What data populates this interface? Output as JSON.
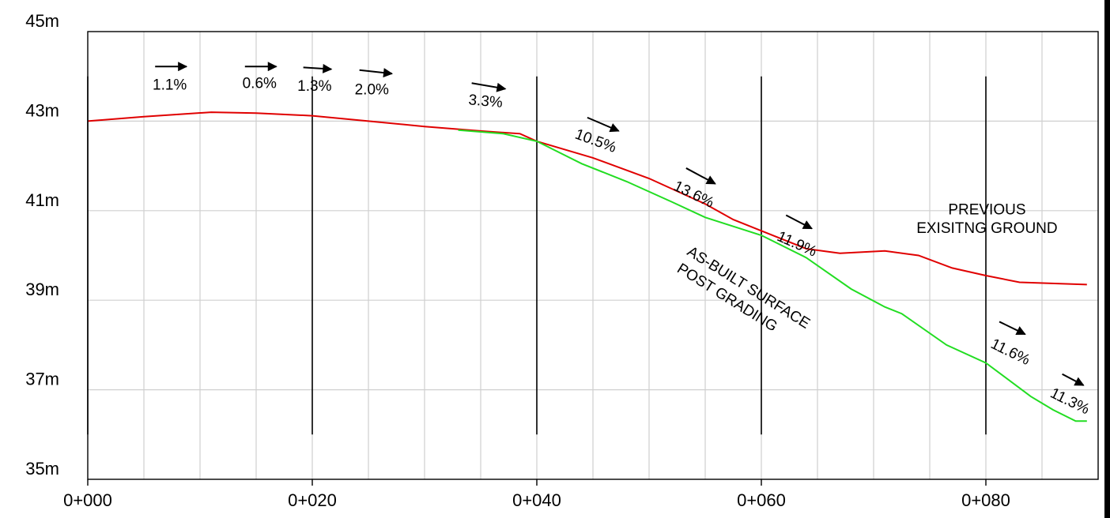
{
  "chart_data": {
    "type": "line",
    "xlabel": "",
    "ylabel": "",
    "xlim": [
      0,
      90
    ],
    "ylim": [
      35,
      45
    ],
    "x_ticks": [
      {
        "value": 0,
        "label": "0+000"
      },
      {
        "value": 20,
        "label": "0+020"
      },
      {
        "value": 40,
        "label": "0+040"
      },
      {
        "value": 60,
        "label": "0+060"
      },
      {
        "value": 80,
        "label": "0+080"
      }
    ],
    "y_ticks": [
      {
        "value": 45,
        "label": "45m"
      },
      {
        "value": 43,
        "label": "43m"
      },
      {
        "value": 41,
        "label": "41m"
      },
      {
        "value": 39,
        "label": "39m"
      },
      {
        "value": 37,
        "label": "37m"
      },
      {
        "value": 35,
        "label": "35m"
      }
    ],
    "grid": true,
    "minor_grid_x": 5,
    "minor_grid_y": 2,
    "major_x_lines": [
      0,
      20,
      40,
      60,
      80
    ],
    "series": [
      {
        "color": "#e00000",
        "points": [
          [
            0,
            43.0
          ],
          [
            5,
            43.1
          ],
          [
            11,
            43.2
          ],
          [
            15,
            43.18
          ],
          [
            20,
            43.12
          ],
          [
            25,
            43.0
          ],
          [
            30,
            42.88
          ],
          [
            35,
            42.78
          ],
          [
            38.5,
            42.72
          ],
          [
            40,
            42.55
          ],
          [
            45,
            42.18
          ],
          [
            50,
            41.72
          ],
          [
            55,
            41.15
          ],
          [
            57.5,
            40.8
          ],
          [
            60,
            40.55
          ],
          [
            64,
            40.15
          ],
          [
            67,
            40.05
          ],
          [
            71,
            40.1
          ],
          [
            74,
            40.0
          ],
          [
            77,
            39.72
          ],
          [
            80,
            39.55
          ],
          [
            83,
            39.4
          ],
          [
            89,
            39.35
          ]
        ]
      },
      {
        "color": "#22dd22",
        "points": [
          [
            33,
            42.8
          ],
          [
            37,
            42.72
          ],
          [
            40,
            42.55
          ],
          [
            44,
            42.05
          ],
          [
            48,
            41.65
          ],
          [
            52,
            41.2
          ],
          [
            55,
            40.85
          ],
          [
            60,
            40.45
          ],
          [
            64,
            39.95
          ],
          [
            68,
            39.25
          ],
          [
            71,
            38.85
          ],
          [
            72.5,
            38.7
          ],
          [
            76.5,
            38.0
          ],
          [
            80,
            37.6
          ],
          [
            84,
            36.85
          ],
          [
            86,
            36.55
          ],
          [
            88,
            36.3
          ],
          [
            89,
            36.3
          ]
        ]
      }
    ],
    "slope_labels": [
      {
        "text": "1.1%",
        "x": 7.3,
        "y": 43.7,
        "rotate": 0,
        "arrow_x1": 6,
        "arrow_y1": 44.22,
        "arrow_x2": 8.8,
        "arrow_y2": 44.22
      },
      {
        "text": "0.6%",
        "x": 15.3,
        "y": 43.74,
        "rotate": 0,
        "arrow_x1": 14,
        "arrow_y1": 44.22,
        "arrow_x2": 16.8,
        "arrow_y2": 44.22
      },
      {
        "text": "1.3%",
        "x": 20.2,
        "y": 43.68,
        "rotate": 0,
        "arrow_x1": 19.2,
        "arrow_y1": 44.2,
        "arrow_x2": 21.7,
        "arrow_y2": 44.16
      },
      {
        "text": "2.0%",
        "x": 25.3,
        "y": 43.6,
        "rotate": 0,
        "arrow_x1": 24.2,
        "arrow_y1": 44.14,
        "arrow_x2": 27.1,
        "arrow_y2": 44.06
      },
      {
        "text": "3.3%",
        "x": 35.4,
        "y": 43.34,
        "rotate": 5,
        "arrow_x1": 34.2,
        "arrow_y1": 43.85,
        "arrow_x2": 37.2,
        "arrow_y2": 43.72
      },
      {
        "text": "10.5%",
        "x": 45.1,
        "y": 42.46,
        "rotate": 20,
        "arrow_x1": 44.5,
        "arrow_y1": 43.08,
        "arrow_x2": 47.3,
        "arrow_y2": 42.78
      },
      {
        "text": "13.6%",
        "x": 53.8,
        "y": 41.27,
        "rotate": 26,
        "arrow_x1": 53.3,
        "arrow_y1": 41.95,
        "arrow_x2": 55.9,
        "arrow_y2": 41.6
      },
      {
        "text": "11.9%",
        "x": 63.0,
        "y": 40.16,
        "rotate": 24,
        "arrow_x1": 62.2,
        "arrow_y1": 40.9,
        "arrow_x2": 64.5,
        "arrow_y2": 40.6
      },
      {
        "text": "11.6%",
        "x": 82.0,
        "y": 37.75,
        "rotate": 26,
        "arrow_x1": 81.2,
        "arrow_y1": 38.52,
        "arrow_x2": 83.5,
        "arrow_y2": 38.24
      },
      {
        "text": "11.3%",
        "x": 87.3,
        "y": 36.65,
        "rotate": 26,
        "arrow_x1": 86.8,
        "arrow_y1": 37.35,
        "arrow_x2": 88.7,
        "arrow_y2": 37.1
      }
    ],
    "annotations": [
      {
        "text": "PREVIOUS",
        "x": 80.1,
        "y": 40.92,
        "rotate": 0,
        "anchor": "middle"
      },
      {
        "text": "EXISITNG GROUND",
        "x": 80.1,
        "y": 40.5,
        "rotate": 0,
        "anchor": "middle"
      },
      {
        "text": "AS-BUILT SURFACE",
        "x": 53.3,
        "y": 40.03,
        "rotate": 32,
        "anchor": "start"
      },
      {
        "text": "POST GRADING",
        "x": 52.4,
        "y": 39.65,
        "rotate": 32,
        "anchor": "start"
      }
    ]
  }
}
